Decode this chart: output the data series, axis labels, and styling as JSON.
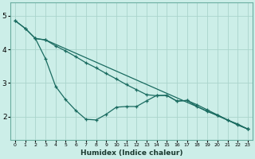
{
  "xlabel": "Humidex (Indice chaleur)",
  "bg_color": "#cceee8",
  "grid_color": "#aad4cc",
  "line_color": "#1a6b60",
  "x_ticks": [
    0,
    1,
    2,
    3,
    4,
    5,
    6,
    7,
    8,
    9,
    10,
    11,
    12,
    13,
    14,
    15,
    16,
    17,
    18,
    19,
    20,
    21,
    22,
    23
  ],
  "x_tick_labels": [
    "0",
    "1",
    "2",
    "3",
    "4",
    "5",
    "6",
    "7",
    "8",
    "9",
    "10",
    "11",
    "12",
    "13",
    "14",
    "15",
    "16",
    "17",
    "18",
    "19",
    "20",
    "21",
    "22",
    "23"
  ],
  "ylim": [
    1.3,
    5.4
  ],
  "xlim": [
    -0.5,
    23.5
  ],
  "yticks": [
    2,
    3,
    4,
    5
  ],
  "line1_x": [
    0,
    1,
    2,
    3,
    4,
    5,
    6,
    7,
    8,
    9,
    10,
    11,
    12,
    13,
    14,
    15,
    16,
    17,
    18,
    19,
    20,
    21,
    22,
    23
  ],
  "line1_y": [
    4.85,
    4.62,
    4.32,
    3.72,
    2.9,
    2.5,
    2.18,
    1.92,
    1.9,
    2.07,
    2.28,
    2.3,
    2.3,
    2.47,
    2.63,
    2.63,
    2.46,
    2.48,
    2.3,
    2.15,
    2.05,
    1.9,
    1.75,
    1.63
  ],
  "line2_x": [
    0,
    1,
    2,
    3,
    4,
    5,
    6,
    7,
    8,
    9,
    10,
    11,
    12,
    13,
    14,
    15,
    16,
    17,
    18,
    19,
    20,
    21,
    22,
    23
  ],
  "line2_y": [
    4.85,
    4.62,
    4.32,
    4.28,
    4.1,
    3.95,
    3.78,
    3.6,
    3.45,
    3.28,
    3.12,
    2.95,
    2.8,
    2.65,
    2.62,
    2.63,
    2.46,
    2.48,
    2.35,
    2.2,
    2.05,
    1.9,
    1.78,
    1.63
  ],
  "line3_x": [
    2,
    3,
    23
  ],
  "line3_y": [
    4.32,
    4.28,
    1.63
  ]
}
